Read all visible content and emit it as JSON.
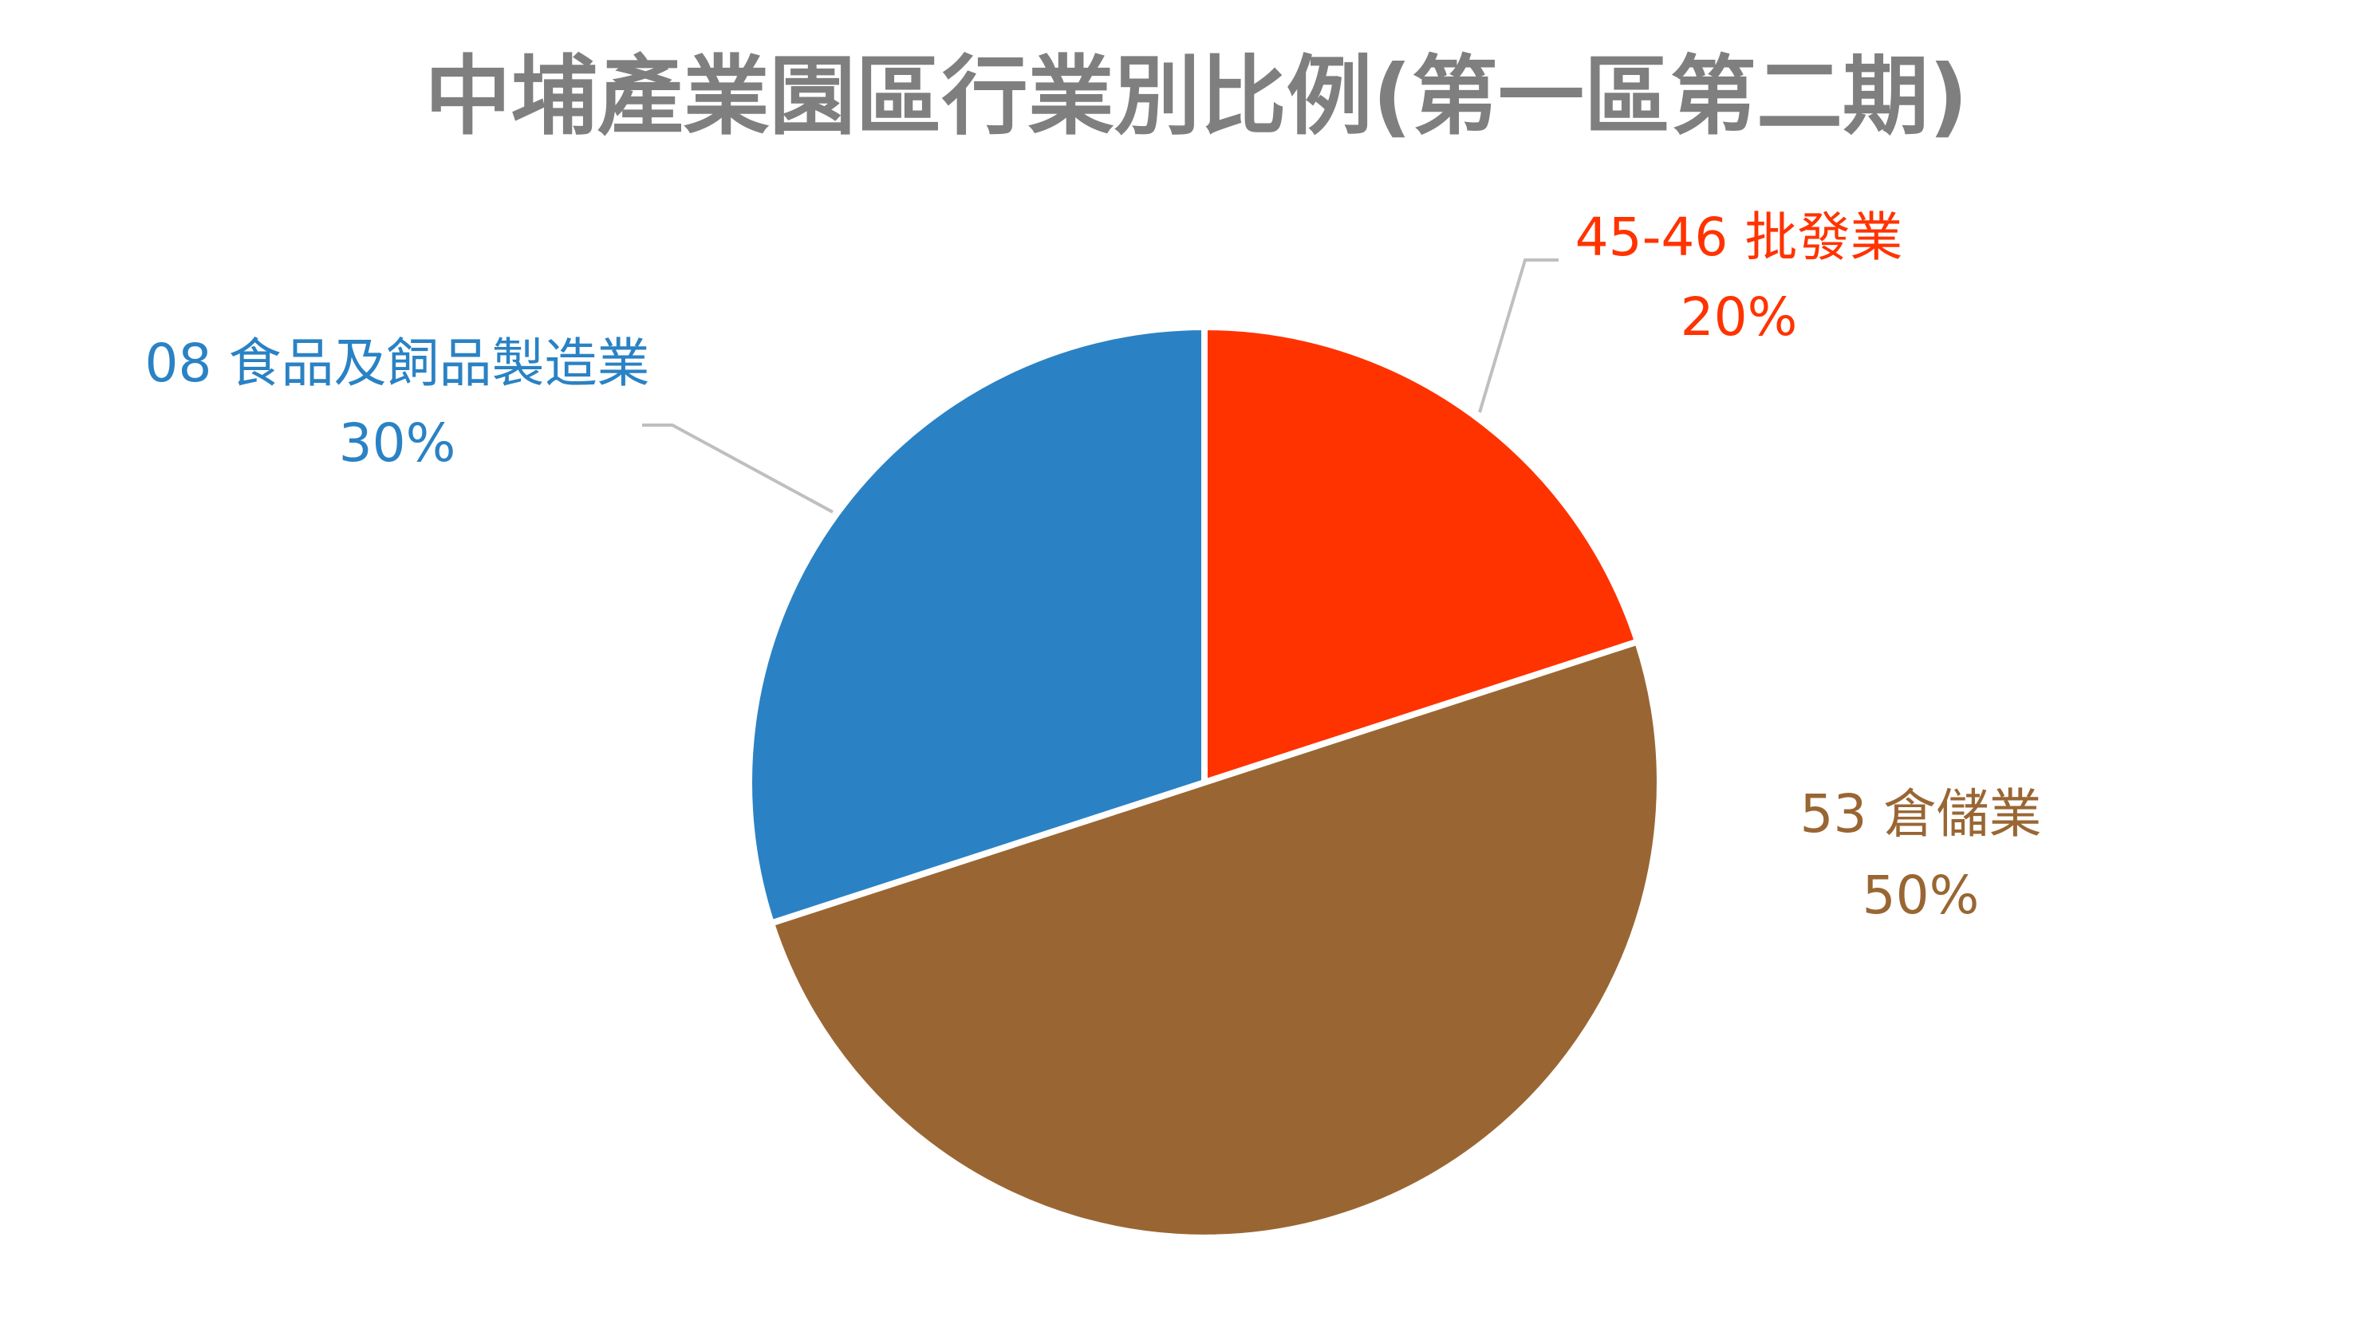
{
  "chart_data": {
    "type": "pie",
    "title": "中埔產業園區行業別比例(第一區第二期)",
    "categories": [
      "45-46 批發業",
      "53 倉儲業",
      "08 食品及飼品製造業"
    ],
    "values": [
      20,
      50,
      30
    ],
    "value_labels": [
      "20%",
      "50%",
      "30%"
    ],
    "colors": [
      "#ff3300",
      "#996633",
      "#2a82c4"
    ]
  }
}
